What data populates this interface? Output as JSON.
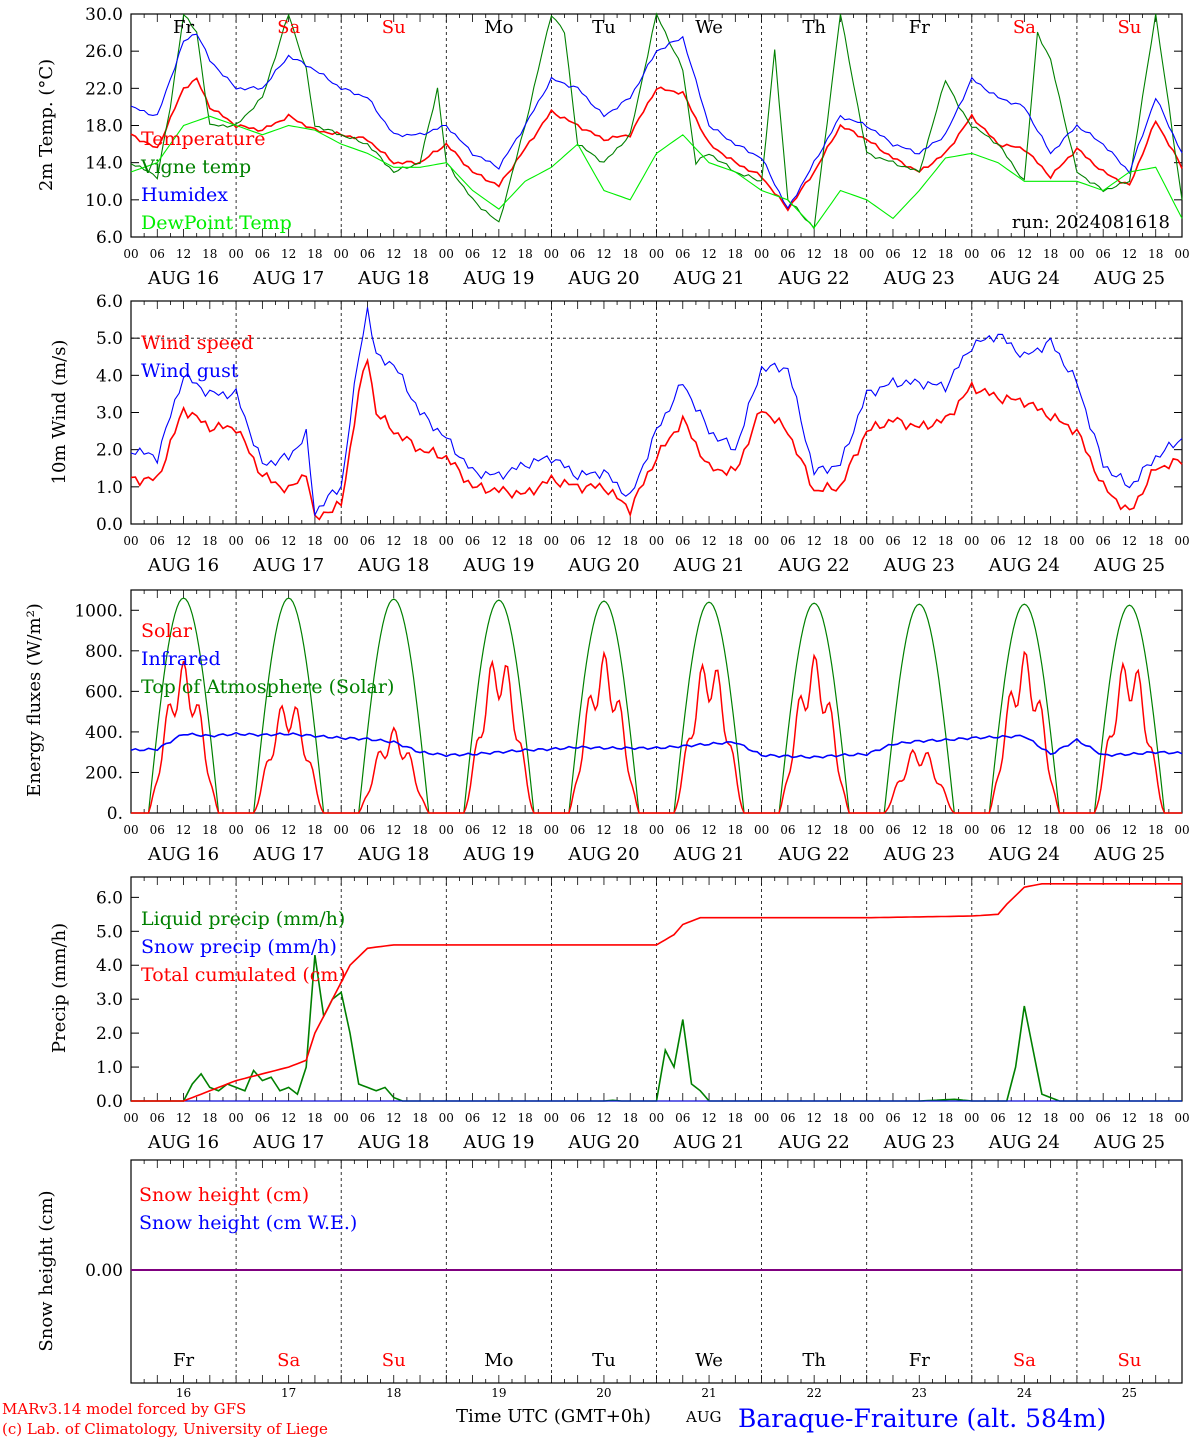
{
  "days": [
    "AUG 16",
    "AUG 17",
    "AUG 18",
    "AUG 19",
    "AUG 20",
    "AUG 21",
    "AUG 22",
    "AUG 23",
    "AUG 24",
    "AUG 25"
  ],
  "day_names": [
    "Fr",
    "Sa",
    "Su",
    "Mo",
    "Tu",
    "We",
    "Th",
    "Fr",
    "Sa",
    "Su"
  ],
  "day_name_colors": [
    "#000000",
    "#ff0000",
    "#ff0000",
    "#000000",
    "#000000",
    "#000000",
    "#000000",
    "#000000",
    "#ff0000",
    "#ff0000"
  ],
  "day_numbers": [
    "16",
    "17",
    "18",
    "19",
    "20",
    "21",
    "22",
    "23",
    "24",
    "25"
  ],
  "hour_ticks": [
    "00",
    "06",
    "12",
    "18"
  ],
  "run_label": "run: 2024081618",
  "footer": {
    "model": "MARv3.14 model forced by GFS",
    "lab": "(c) Lab. of Climatology, University of Liege",
    "xlabel": "Time UTC (GMT+0h)",
    "month": "AUG",
    "station": "Baraque-Fraiture (alt. 584m)"
  },
  "colors": {
    "red": "#ff0000",
    "green": "#008000",
    "blue": "#0000ff",
    "lightgreen": "#00ee00",
    "purple": "#7f007f",
    "axis": "#000000"
  },
  "chart_data": [
    {
      "type": "line",
      "ylabel": "2m Temp. (°C)",
      "ylim": [
        6,
        30
      ],
      "yticks": [
        "6.0",
        "10.0",
        "14.0",
        "18.0",
        "22.0",
        "26.0",
        "30.0"
      ],
      "x_unit": "hours since Aug 16 00 UTC",
      "series": [
        {
          "name": "Temperature",
          "color": "#ff0000",
          "x": [
            0,
            6,
            12,
            15,
            18,
            24,
            30,
            36,
            42,
            48,
            54,
            60,
            66,
            72,
            78,
            84,
            90,
            96,
            102,
            108,
            114,
            120,
            126,
            132,
            138,
            144,
            150,
            156,
            162,
            168,
            174,
            180,
            186,
            192,
            198,
            204,
            210,
            216,
            222,
            228,
            234,
            240
          ],
          "y": [
            17,
            15.5,
            22,
            23,
            20,
            18,
            17.5,
            19,
            17.5,
            17,
            16.5,
            14,
            14,
            16,
            13,
            11.5,
            15.5,
            19.5,
            18,
            16.5,
            17,
            22,
            21.5,
            16,
            14,
            12.5,
            9,
            13,
            18,
            16.5,
            14.5,
            13,
            15,
            19,
            16,
            15.5,
            12.5,
            15.5,
            13,
            11.5,
            18.5,
            13.5
          ]
        },
        {
          "name": "Vigne temp",
          "color": "#008000",
          "x": [
            0,
            6,
            9,
            12,
            15,
            18,
            24,
            30,
            36,
            40,
            42,
            48,
            54,
            60,
            66,
            70,
            72,
            78,
            84,
            90,
            96,
            99,
            102,
            108,
            114,
            120,
            126,
            129,
            132,
            138,
            144,
            147,
            150,
            156,
            162,
            168,
            174,
            180,
            186,
            189,
            192,
            198,
            204,
            207,
            210,
            216,
            222,
            228,
            234,
            240
          ],
          "y": [
            14,
            12.5,
            20,
            30,
            28,
            18,
            18,
            21,
            30,
            24,
            18,
            17,
            16,
            13,
            14,
            22,
            14,
            10,
            7.5,
            18,
            30,
            28,
            16,
            14,
            17,
            30,
            24,
            14,
            15,
            13,
            12,
            26,
            10,
            7,
            30,
            15,
            14,
            13,
            23,
            20,
            18,
            16,
            12,
            28,
            25,
            13,
            11,
            12,
            30,
            10
          ]
        },
        {
          "name": "Humidex",
          "color": "#0000ff",
          "x": [
            0,
            6,
            12,
            15,
            18,
            24,
            30,
            36,
            42,
            48,
            54,
            60,
            66,
            72,
            78,
            84,
            90,
            96,
            102,
            108,
            114,
            120,
            126,
            132,
            138,
            144,
            150,
            156,
            162,
            168,
            174,
            180,
            186,
            192,
            198,
            204,
            210,
            216,
            222,
            228,
            234,
            240
          ],
          "y": [
            20,
            19,
            27,
            28,
            25,
            22,
            22,
            25.5,
            24,
            22,
            21,
            17,
            17,
            18,
            15,
            13.5,
            18,
            23,
            22,
            19,
            21,
            26,
            27.5,
            18,
            16,
            14.5,
            9,
            14,
            19,
            18,
            16,
            15,
            17,
            23,
            21,
            20,
            15,
            18,
            16,
            13,
            21,
            15
          ]
        },
        {
          "name": "DewPoint Temp",
          "color": "#00ee00",
          "x": [
            0,
            6,
            12,
            18,
            24,
            30,
            36,
            42,
            48,
            54,
            60,
            66,
            72,
            78,
            84,
            90,
            96,
            102,
            108,
            114,
            120,
            126,
            132,
            138,
            144,
            150,
            156,
            162,
            168,
            174,
            180,
            186,
            192,
            198,
            204,
            210,
            216,
            222,
            228,
            234,
            240
          ],
          "y": [
            13,
            14,
            18,
            19,
            18,
            17,
            18,
            17.5,
            16,
            15,
            13.5,
            13.5,
            14,
            11,
            9,
            12,
            13.5,
            16,
            11,
            10,
            15,
            17,
            14,
            13,
            11,
            10,
            7,
            11,
            10,
            8,
            11,
            14.5,
            15,
            14,
            12,
            12,
            12,
            11,
            13,
            13.5,
            8
          ]
        }
      ],
      "annotations": [
        "run: 2024081618"
      ]
    },
    {
      "type": "line",
      "ylabel": "10m Wind (m/s)",
      "ylim": [
        0,
        6
      ],
      "yticks": [
        "0.0",
        "1.0",
        "2.0",
        "3.0",
        "4.0",
        "5.0",
        "6.0"
      ],
      "reference_line": 5.0,
      "series": [
        {
          "name": "Wind speed",
          "color": "#ff0000",
          "x": [
            0,
            6,
            12,
            18,
            24,
            30,
            36,
            40,
            42,
            44,
            48,
            52,
            54,
            56,
            60,
            66,
            72,
            78,
            84,
            90,
            96,
            102,
            108,
            114,
            120,
            126,
            132,
            138,
            144,
            150,
            156,
            162,
            168,
            174,
            180,
            186,
            192,
            198,
            204,
            210,
            216,
            222,
            228,
            234,
            240
          ],
          "y": [
            1.2,
            1.2,
            3.1,
            2.6,
            2.6,
            1.3,
            0.9,
            1.4,
            0.1,
            0.3,
            0.5,
            3.5,
            4.5,
            3.0,
            2.5,
            2.0,
            1.8,
            1.0,
            0.9,
            0.8,
            1.2,
            1.0,
            1.0,
            0.4,
            1.8,
            2.8,
            1.5,
            1.4,
            3.1,
            2.5,
            0.9,
            1.0,
            2.5,
            2.8,
            2.6,
            2.8,
            3.7,
            3.4,
            3.3,
            2.9,
            2.5,
            1.0,
            0.3,
            1.5,
            1.7
          ]
        },
        {
          "name": "Wind gust",
          "color": "#0000ff",
          "x": [
            0,
            6,
            12,
            18,
            24,
            30,
            36,
            40,
            42,
            44,
            48,
            52,
            54,
            56,
            60,
            66,
            72,
            78,
            84,
            90,
            96,
            102,
            108,
            114,
            120,
            126,
            132,
            138,
            144,
            150,
            156,
            162,
            168,
            174,
            180,
            186,
            192,
            198,
            204,
            210,
            216,
            222,
            228,
            234,
            240
          ],
          "y": [
            2.0,
            1.8,
            4.0,
            3.5,
            3.5,
            1.6,
            1.8,
            2.4,
            0.3,
            0.6,
            1.0,
            4.5,
            5.8,
            4.5,
            4.3,
            3.0,
            2.3,
            1.4,
            1.3,
            1.6,
            1.8,
            1.3,
            1.4,
            0.7,
            2.5,
            3.8,
            2.5,
            2.0,
            4.2,
            4.2,
            1.4,
            1.6,
            3.5,
            3.8,
            3.8,
            3.7,
            4.8,
            5.1,
            4.5,
            4.9,
            3.8,
            1.6,
            1.0,
            1.8,
            2.3
          ]
        }
      ]
    },
    {
      "type": "line",
      "ylabel": "Energy fluxes (W/m²)",
      "ylim": [
        0,
        1100
      ],
      "yticks": [
        "0.",
        "200.",
        "400.",
        "600.",
        "800.",
        "1000."
      ],
      "series": [
        {
          "name": "Solar",
          "color": "#ff0000",
          "peaks": [
            750,
            570,
            420,
            800,
            790,
            780,
            780,
            330,
            800,
            780
          ]
        },
        {
          "name": "Infrared",
          "color": "#0000ff",
          "x": [
            0,
            6,
            12,
            18,
            24,
            30,
            36,
            42,
            48,
            54,
            60,
            66,
            72,
            78,
            84,
            90,
            96,
            102,
            108,
            114,
            120,
            126,
            132,
            138,
            144,
            150,
            156,
            162,
            168,
            174,
            180,
            186,
            192,
            198,
            204,
            210,
            216,
            222,
            228,
            234,
            240
          ],
          "y": [
            310,
            315,
            390,
            380,
            390,
            385,
            390,
            380,
            370,
            365,
            350,
            300,
            285,
            290,
            300,
            310,
            315,
            325,
            320,
            320,
            320,
            330,
            340,
            350,
            285,
            280,
            275,
            285,
            290,
            340,
            355,
            360,
            370,
            375,
            380,
            290,
            360,
            285,
            290,
            300,
            295
          ]
        },
        {
          "name": "Top of Atmosphere (Solar)",
          "color": "#008000",
          "peaks": [
            1060,
            1060,
            1055,
            1050,
            1045,
            1040,
            1035,
            1030,
            1030,
            1025
          ]
        }
      ]
    },
    {
      "type": "line",
      "ylabel": "Precip (mm/h)",
      "ylim": [
        0,
        6.6
      ],
      "yticks": [
        "0.0",
        "1.0",
        "2.0",
        "3.0",
        "4.0",
        "5.0",
        "6.0"
      ],
      "series": [
        {
          "name": "Liquid precip (mm/h)",
          "color": "#008000",
          "x": [
            0,
            12,
            14,
            16,
            18,
            20,
            22,
            24,
            26,
            28,
            30,
            32,
            34,
            36,
            38,
            40,
            42,
            44,
            46,
            48,
            50,
            52,
            54,
            56,
            58,
            60,
            62,
            64,
            66,
            68,
            70,
            72,
            96,
            108,
            110,
            112,
            118,
            120,
            122,
            124,
            126,
            128,
            130,
            132,
            144,
            180,
            188,
            192,
            198,
            200,
            202,
            204,
            206,
            208,
            210,
            212,
            240
          ],
          "y": [
            0,
            0,
            0.5,
            0.8,
            0.4,
            0.3,
            0.5,
            0.4,
            0.3,
            0.9,
            0.6,
            0.7,
            0.3,
            0.4,
            0.2,
            1.0,
            4.3,
            2.5,
            3.0,
            3.2,
            2.0,
            0.5,
            0.4,
            0.3,
            0.4,
            0.1,
            0,
            0,
            0,
            0,
            0,
            0,
            0,
            0,
            0.02,
            0,
            0,
            0,
            1.5,
            1.0,
            2.4,
            0.5,
            0.3,
            0,
            0,
            0,
            0.05,
            0,
            0,
            0,
            1.0,
            2.8,
            1.5,
            0.2,
            0.1,
            0,
            0
          ]
        },
        {
          "name": "Snow precip (mm/h)",
          "color": "#0000ff",
          "x": [
            0,
            240
          ],
          "y": [
            0,
            0
          ]
        },
        {
          "name": "Total cumulated (cm)",
          "color": "#ff0000",
          "x": [
            0,
            12,
            18,
            24,
            30,
            36,
            40,
            42,
            46,
            50,
            54,
            60,
            72,
            96,
            120,
            124,
            126,
            130,
            144,
            168,
            192,
            198,
            200,
            204,
            208,
            216,
            240
          ],
          "y": [
            0,
            0,
            0.3,
            0.6,
            0.8,
            1.0,
            1.2,
            2.0,
            3.0,
            4.0,
            4.5,
            4.6,
            4.6,
            4.6,
            4.6,
            4.9,
            5.2,
            5.4,
            5.4,
            5.4,
            5.45,
            5.5,
            5.8,
            6.3,
            6.4,
            6.4,
            6.4
          ]
        }
      ]
    },
    {
      "type": "line",
      "ylabel": "Snow height (cm)",
      "yticks": [
        "0.00"
      ],
      "series": [
        {
          "name": "Snow height (cm)",
          "color": "#ff0000",
          "x": [
            0,
            240
          ],
          "y": [
            0,
            0
          ]
        },
        {
          "name": "Snow height (cm W.E.)",
          "color": "#0000ff",
          "x": [
            0,
            240
          ],
          "y": [
            0,
            0
          ]
        }
      ]
    }
  ]
}
